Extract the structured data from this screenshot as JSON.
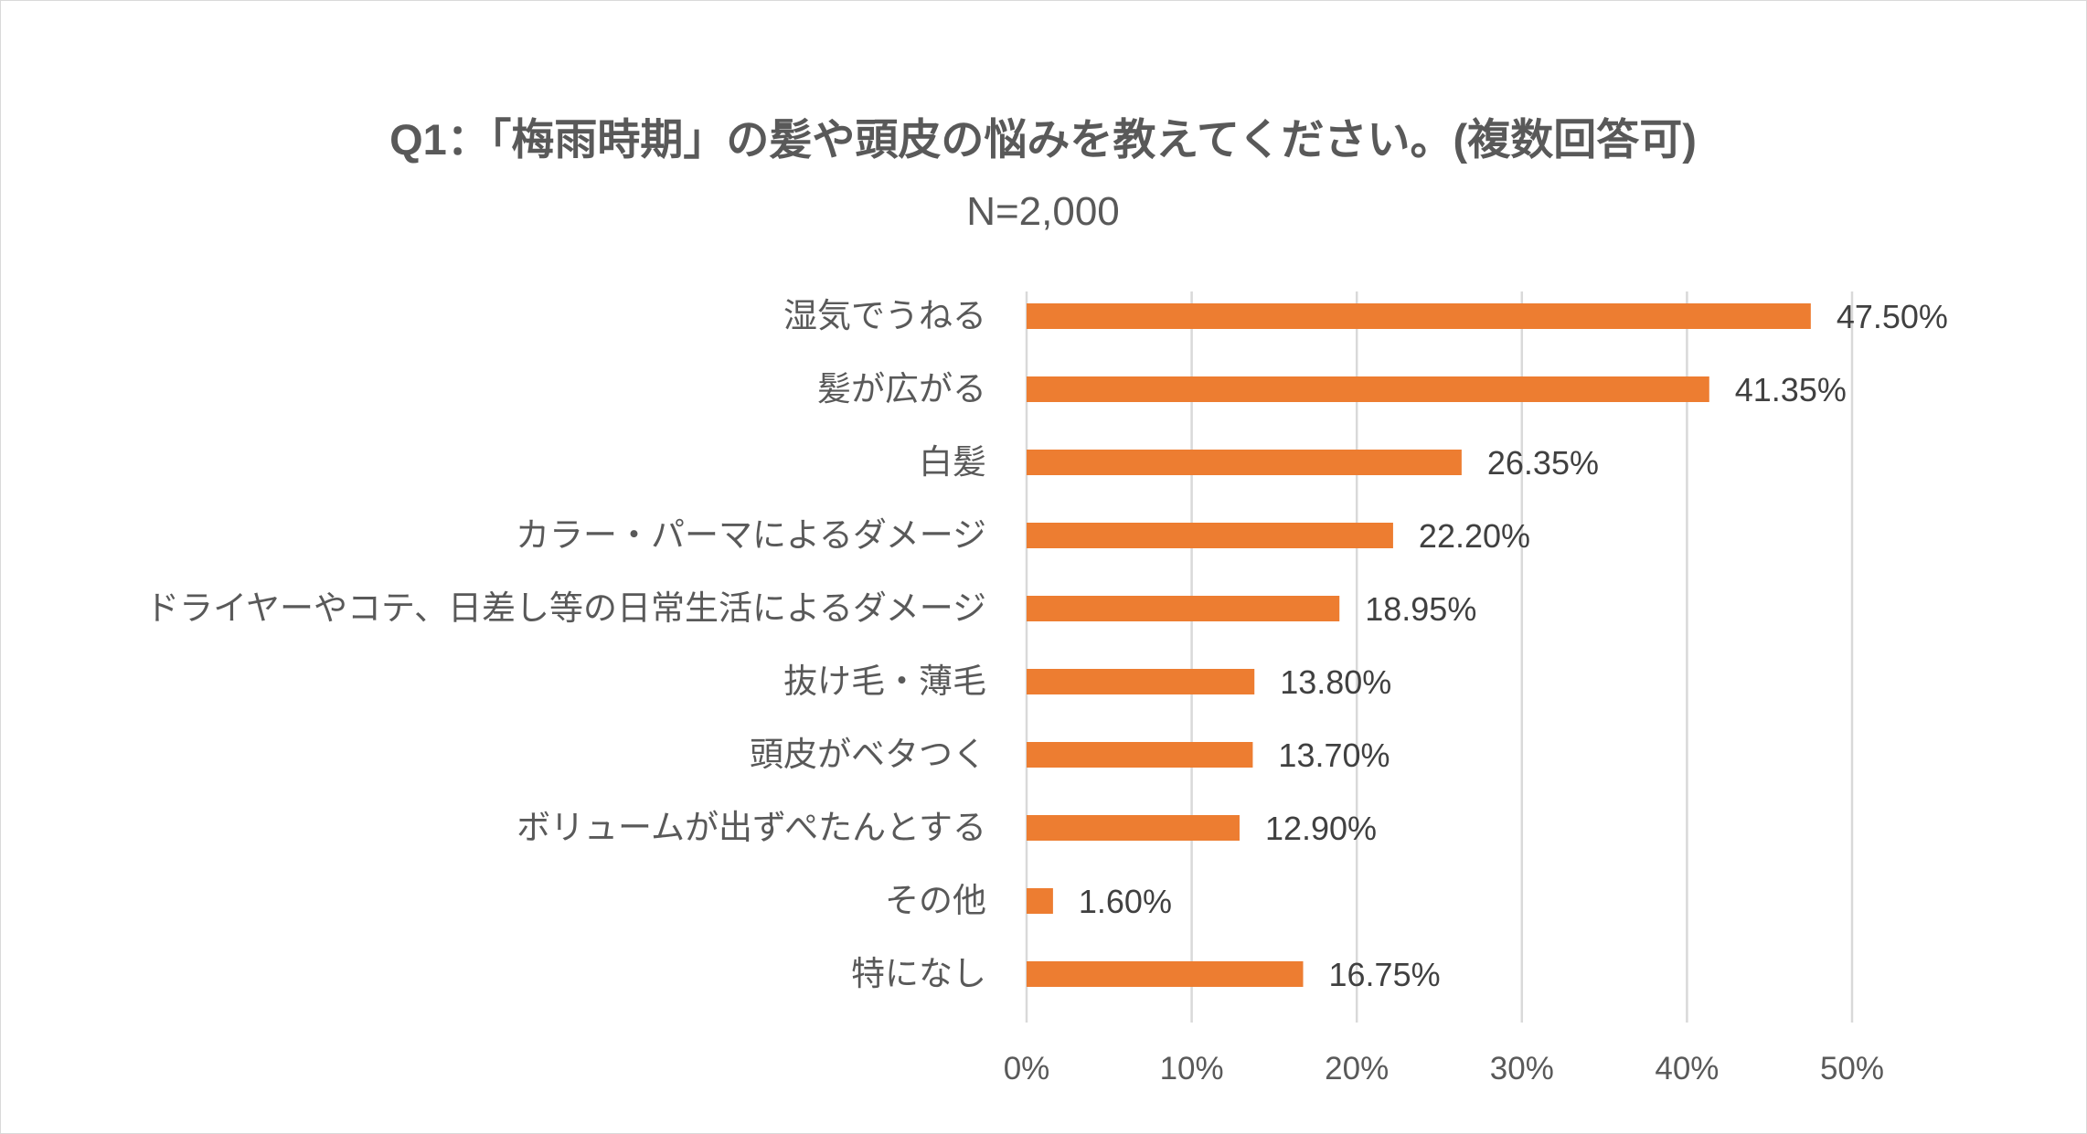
{
  "chart_data": {
    "type": "bar",
    "orientation": "horizontal",
    "title": "Q1：「梅雨時期」の髪や頭皮の悩みを教えてください。(複数回答可)",
    "subtitle": "N=2,000",
    "categories": [
      "湿気でうねる",
      "髪が広がる",
      "白髪",
      "カラー・パーマによるダメージ",
      "ドライヤーやコテ、日差し等の日常生活によるダメージ",
      "抜け毛・薄毛",
      "頭皮がベタつく",
      "ボリュームが出ずぺたんとする",
      "その他",
      "特になし"
    ],
    "values": [
      47.5,
      41.35,
      26.35,
      22.2,
      18.95,
      13.8,
      13.7,
      12.9,
      1.6,
      16.75
    ],
    "value_labels": [
      "47.50%",
      "41.35%",
      "26.35%",
      "22.20%",
      "18.95%",
      "13.80%",
      "13.70%",
      "12.90%",
      "1.60%",
      "16.75%"
    ],
    "xlim": [
      0,
      50
    ],
    "x_ticks": [
      0,
      10,
      20,
      30,
      40,
      50
    ],
    "x_tick_labels": [
      "0%",
      "10%",
      "20%",
      "30%",
      "40%",
      "50%"
    ],
    "xlabel": "",
    "ylabel": "",
    "grid": true,
    "legend": "none",
    "bar_color": "#ed7d31"
  }
}
